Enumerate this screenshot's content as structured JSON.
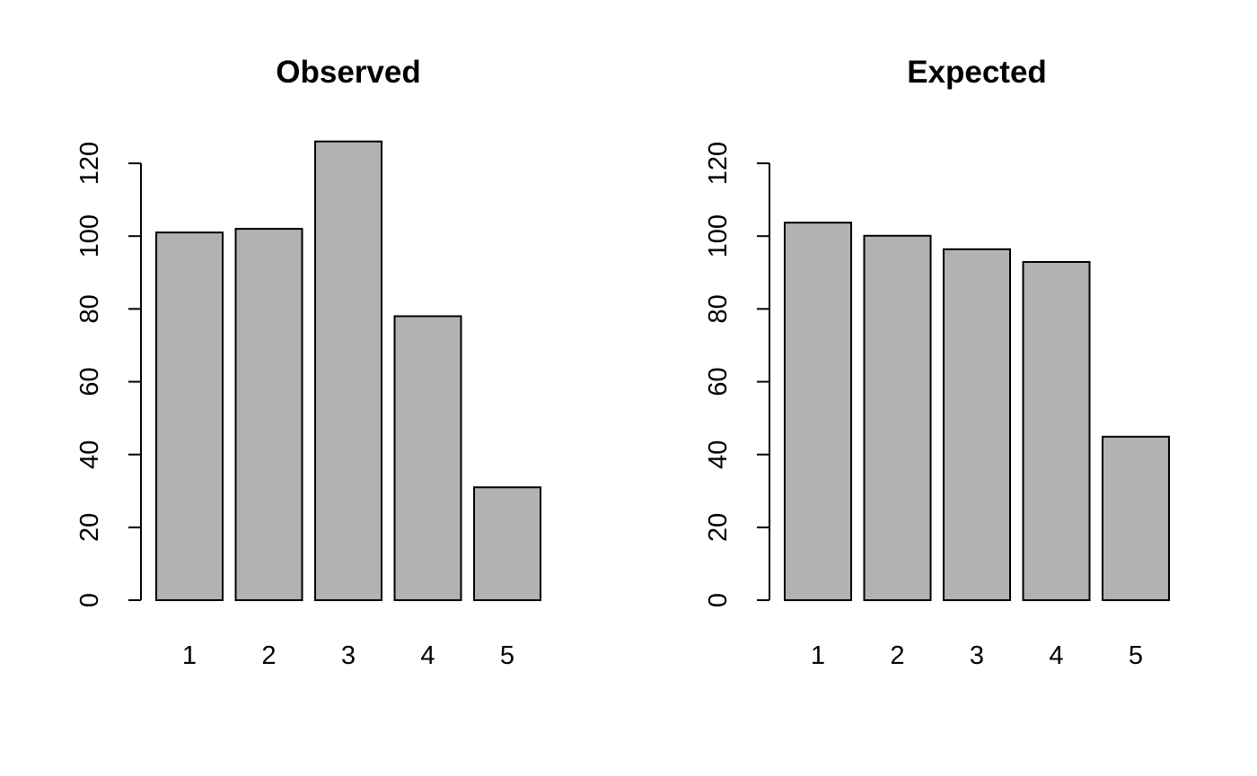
{
  "chart_data": [
    {
      "type": "bar",
      "title": "Observed",
      "categories": [
        "1",
        "2",
        "3",
        "4",
        "5"
      ],
      "values": [
        101,
        102,
        126,
        78,
        31
      ],
      "xlabel": "",
      "ylabel": "",
      "ylim": [
        0,
        120
      ],
      "yticks": [
        "0",
        "20",
        "40",
        "60",
        "80",
        "100",
        "120"
      ],
      "bar_color": "#b2b2b2",
      "grid": false
    },
    {
      "type": "bar",
      "title": "Expected",
      "categories": [
        "1",
        "2",
        "3",
        "4",
        "5"
      ],
      "values": [
        103.7,
        100.1,
        96.4,
        92.9,
        44.9
      ],
      "xlabel": "",
      "ylabel": "",
      "ylim": [
        0,
        120
      ],
      "yticks": [
        "0",
        "20",
        "40",
        "60",
        "80",
        "100",
        "120"
      ],
      "bar_color": "#b2b2b2",
      "grid": false
    }
  ]
}
